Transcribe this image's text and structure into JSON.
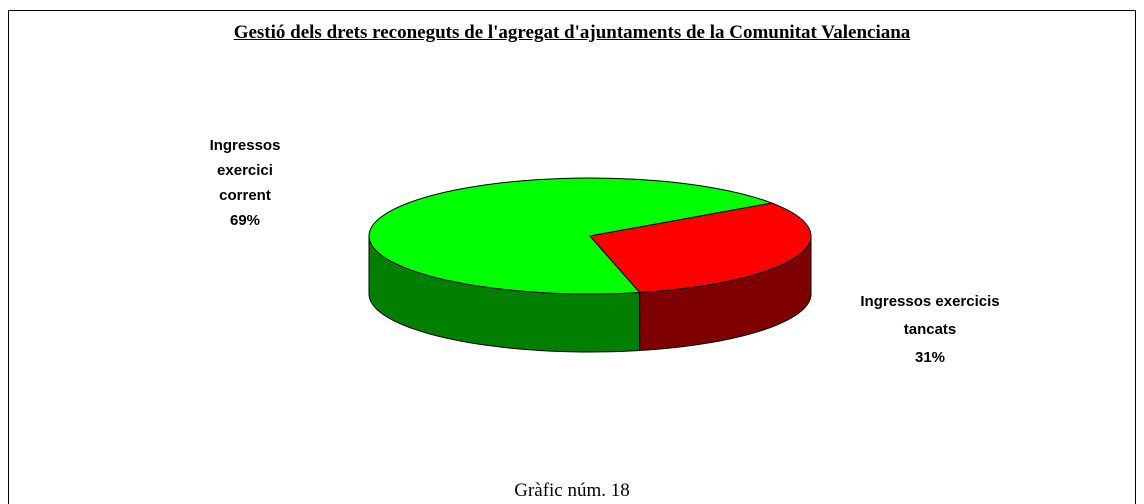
{
  "chart_data": {
    "type": "pie3d",
    "title": "Gestió dels drets reconeguts de l'agregat d'ajuntaments de la Comunitat Valenciana",
    "categories": [
      "Ingressos exercici corrent",
      "Ingressos exercicis tancats"
    ],
    "values": [
      69,
      31
    ],
    "value_labels": [
      "69%",
      "31%"
    ],
    "colors": [
      "#00ff00",
      "#ff0000"
    ],
    "caption": "Gràfic núm. 18"
  }
}
